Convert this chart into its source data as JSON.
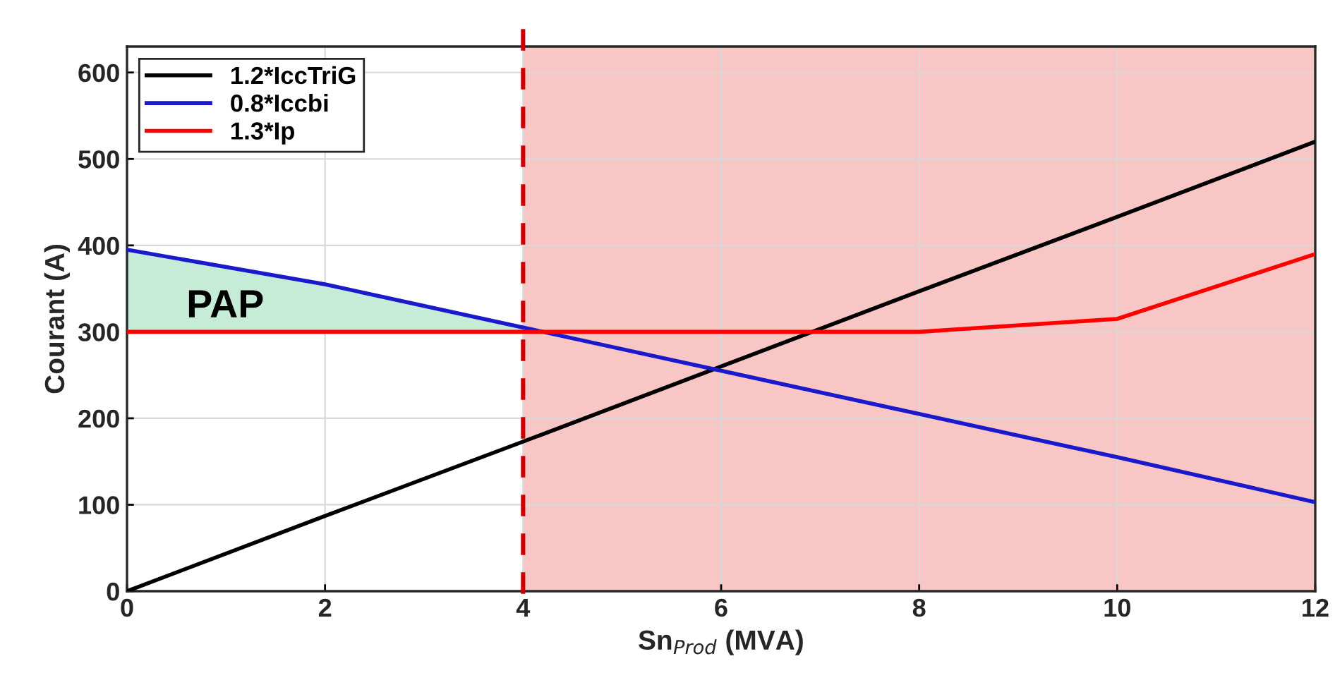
{
  "chart_data": {
    "type": "line",
    "xlabel": "Sn$_{Prod}$ (MVA)",
    "ylabel": "Courant (A)",
    "x": [
      0,
      2,
      4,
      6,
      8,
      10,
      12
    ],
    "series": [
      {
        "name": "1.2*IccTriG",
        "color": "#000000",
        "values": [
          0,
          87,
          173,
          260,
          347,
          433,
          520
        ]
      },
      {
        "name": "0.8*Iccbi",
        "color": "#1a1acc",
        "values": [
          395,
          355,
          305,
          255,
          205,
          155,
          103
        ],
        "lower": [
          300,
          300,
          300,
          null,
          null,
          null,
          null
        ],
        "upper": [
          395,
          355,
          305,
          null,
          null,
          null,
          null
        ]
      },
      {
        "name": "1.3*Ip",
        "color": "#ff0000",
        "values": [
          300,
          300,
          300,
          300,
          300,
          315,
          390
        ]
      }
    ],
    "xlim": [
      0,
      12
    ],
    "ylim": [
      0,
      630
    ],
    "xticks": [
      0,
      2,
      4,
      6,
      8,
      10,
      12
    ],
    "yticks": [
      0,
      100,
      200,
      300,
      400,
      500,
      600
    ],
    "bands": [
      {
        "axis": "x",
        "from": 4,
        "to": 12,
        "color": "#f9c6c6"
      }
    ],
    "ref_lines": [
      {
        "axis": "x",
        "value": 4,
        "color": "#cc0000",
        "line_style": "dashed"
      }
    ],
    "annotations": [
      "PAP"
    ],
    "grid": true,
    "legend": "top left"
  }
}
